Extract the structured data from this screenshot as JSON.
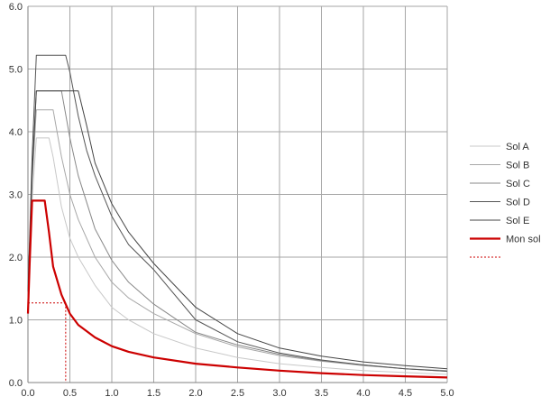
{
  "chart_data": {
    "type": "line",
    "title": "",
    "xlabel": "",
    "ylabel": "",
    "xlim": [
      0,
      5
    ],
    "ylim": [
      0,
      6
    ],
    "xticks": [
      "0.0",
      "0.5",
      "1.0",
      "1.5",
      "2.0",
      "2.5",
      "3.0",
      "3.5",
      "4.0",
      "4.5",
      "5.0"
    ],
    "yticks": [
      "0.0",
      "1.0",
      "2.0",
      "3.0",
      "4.0",
      "5.0",
      "6.0"
    ],
    "grid": true,
    "legend_position": "right",
    "series": [
      {
        "name": "Sol A",
        "color": "#c8c8c8",
        "x": [
          0,
          0.05,
          0.1,
          0.2,
          0.25,
          0.3,
          0.4,
          0.5,
          0.6,
          0.8,
          1.0,
          1.2,
          1.5,
          2.0,
          2.5,
          3.0,
          3.5,
          4.0,
          4.5,
          5.0
        ],
        "y": [
          1.45,
          2.9,
          3.9,
          3.9,
          3.9,
          3.6,
          2.8,
          2.3,
          2.0,
          1.55,
          1.2,
          1.0,
          0.78,
          0.55,
          0.4,
          0.3,
          0.24,
          0.19,
          0.16,
          0.13
        ]
      },
      {
        "name": "Sol B",
        "color": "#a8a8a8",
        "x": [
          0,
          0.05,
          0.1,
          0.2,
          0.3,
          0.4,
          0.5,
          0.6,
          0.8,
          1.0,
          1.2,
          1.5,
          2.0,
          2.5,
          3.0,
          3.5,
          4.0,
          4.5,
          5.0
        ],
        "y": [
          1.45,
          3.2,
          4.35,
          4.35,
          4.35,
          3.6,
          3.0,
          2.6,
          2.0,
          1.6,
          1.35,
          1.1,
          0.78,
          0.57,
          0.43,
          0.34,
          0.27,
          0.22,
          0.19
        ]
      },
      {
        "name": "Sol C",
        "color": "#888888",
        "x": [
          0,
          0.05,
          0.1,
          0.2,
          0.3,
          0.4,
          0.5,
          0.6,
          0.8,
          1.0,
          1.2,
          1.5,
          2.0,
          2.5,
          3.0,
          3.5,
          4.0,
          4.5,
          5.0
        ],
        "y": [
          1.45,
          3.3,
          4.65,
          4.65,
          4.65,
          4.65,
          3.9,
          3.3,
          2.45,
          1.95,
          1.6,
          1.25,
          0.8,
          0.6,
          0.45,
          0.35,
          0.28,
          0.22,
          0.18
        ]
      },
      {
        "name": "Sol D",
        "color": "#555555",
        "x": [
          0,
          0.05,
          0.1,
          0.2,
          0.3,
          0.45,
          0.5,
          0.6,
          0.7,
          0.8,
          1.0,
          1.2,
          1.5,
          2.0,
          2.5,
          3.0,
          3.5,
          4.0,
          4.5,
          5.0
        ],
        "y": [
          1.45,
          3.6,
          5.22,
          5.22,
          5.22,
          5.22,
          4.95,
          4.25,
          3.7,
          3.3,
          2.65,
          2.2,
          1.8,
          1.0,
          0.65,
          0.47,
          0.36,
          0.28,
          0.22,
          0.18
        ]
      },
      {
        "name": "Sol E",
        "color": "#444444",
        "x": [
          0,
          0.05,
          0.1,
          0.2,
          0.3,
          0.4,
          0.6,
          0.7,
          0.8,
          1.0,
          1.2,
          1.5,
          2.0,
          2.5,
          3.0,
          3.5,
          4.0,
          4.5,
          5.0
        ],
        "y": [
          1.45,
          3.3,
          4.65,
          4.65,
          4.65,
          4.65,
          4.65,
          4.1,
          3.5,
          2.85,
          2.4,
          1.9,
          1.2,
          0.78,
          0.55,
          0.42,
          0.33,
          0.27,
          0.22
        ]
      },
      {
        "name": "Mon sol",
        "color": "#cc0000",
        "x": [
          0,
          0.02,
          0.05,
          0.2,
          0.25,
          0.3,
          0.4,
          0.5,
          0.6,
          0.8,
          1.0,
          1.2,
          1.5,
          2.0,
          2.5,
          3.0,
          3.5,
          4.0,
          4.5,
          5.0
        ],
        "y": [
          1.1,
          1.9,
          2.9,
          2.9,
          2.4,
          1.85,
          1.4,
          1.1,
          0.92,
          0.72,
          0.58,
          0.49,
          0.4,
          0.3,
          0.24,
          0.19,
          0.15,
          0.12,
          0.1,
          0.08
        ]
      }
    ],
    "reference_lines": {
      "name": "",
      "color": "#cc0000",
      "x": 0.45,
      "y": 1.27
    }
  }
}
